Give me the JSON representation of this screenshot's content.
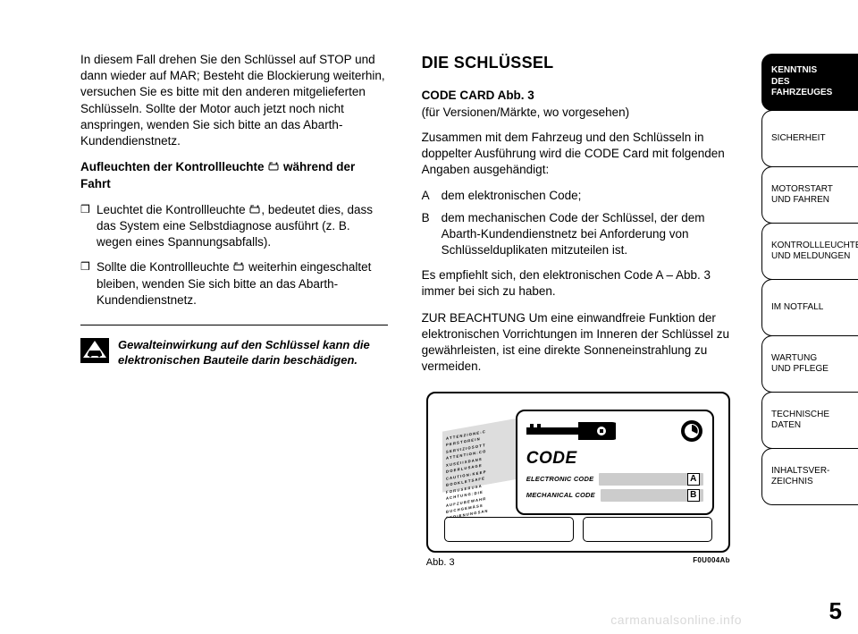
{
  "left": {
    "p1": "In diesem Fall drehen Sie den Schlüssel auf STOP und dann wieder auf MAR; Besteht die Blockierung weiterhin, versuchen Sie es bitte mit den anderen mitgelieferten Schlüsseln. Sollte der Motor auch jetzt noch nicht anspringen, wenden Sie sich bitte an das Abarth-Kundendienstnetz.",
    "h_symbol_prefix": "Aufleuchten der Kontrollleuchte ",
    "h_symbol_suffix": " während der Fahrt",
    "li1_prefix": "Leuchtet die Kontrollleuchte ",
    "li1_suffix": ", bedeutet dies, dass das System eine Selbstdiagnose ausführt (z. B. wegen eines Spannungsabfalls).",
    "li2_prefix": "Sollte die Kontrollleuchte ",
    "li2_suffix": " weiterhin eingeschaltet bleiben, wenden Sie sich bitte an das Abarth-Kundendienstnetz.",
    "warn": "Gewalteinwirkung auf den Schlüssel kann die elektronischen Bauteile darin beschädigen."
  },
  "right": {
    "title": "DIE SCHLÜSSEL",
    "h2": "CODE CARD Abb. 3",
    "sub": "(für Versionen/Märkte, wo vorgesehen)",
    "p1": "Zusammen mit dem Fahrzeug und den Schlüsseln in doppelter Ausführung wird die CODE Card mit folgenden Angaben ausgehändigt:",
    "defA_key": "A",
    "defA_val": "dem elektronischen Code;",
    "defB_key": "B",
    "defB_val": "dem mechanischen Code der Schlüssel, der dem Abarth-Kundendienstnetz bei Anforderung von Schlüsselduplikaten mitzuteilen ist.",
    "p2": "Es empfiehlt sich, den elektronischen Code A – Abb. 3 immer bei sich zu haben.",
    "p3": "ZUR BEACHTUNG Um eine einwandfreie Funktion der elektronischen Vorrichtungen im Inneren der Schlüssel zu gewährleisten, ist eine direkte Sonneneinstrahlung zu vermeiden."
  },
  "figure": {
    "bg_lines": [
      "A T T E N Z I O N E : C",
      "P E R  S T O R E  I  N",
      "S E R V I Z I O  S O T T",
      "A T T E N T I O N : C O",
      "X U S E I I  X  D A N S",
      "D  O  E  R   L   U  S  A  G  E",
      "C A U T I O N : K E E P",
      "B  O  O  K  L  E  T   S  A  F  E",
      "F O R  U S E R  U S A",
      "A C H T U N G : D I E",
      "A U F Z U B E W A H R",
      "B U C H  G E M Ä S S",
      "B E D I E N U N G S A N"
    ],
    "code_title": "CODE",
    "line1_label": "ELECTRONIC CODE",
    "line1_tag": "A",
    "line2_label": "MECHANICAL CODE",
    "line2_tag": "B",
    "caption": "Abb. 3",
    "caption_code": "F0U004Ab"
  },
  "tabs": [
    {
      "label": "KENNTNIS\nDES FAHRZEUGES",
      "active": true
    },
    {
      "label": "SICHERHEIT",
      "active": false
    },
    {
      "label": "MOTORSTART\nUND FAHREN",
      "active": false
    },
    {
      "label": "KONTROLLLEUCHTEN\nUND MELDUNGEN",
      "active": false
    },
    {
      "label": "IM NOTFALL",
      "active": false
    },
    {
      "label": "WARTUNG\nUND PFLEGE",
      "active": false
    },
    {
      "label": "TECHNISCHE DATEN",
      "active": false
    },
    {
      "label": "INHALTSVER-\nZEICHNIS",
      "active": false
    }
  ],
  "page_number": "5",
  "watermark": "carmanualsonline.info",
  "colors": {
    "text": "#000000",
    "background": "#ffffff",
    "tab_active_bg": "#000000",
    "tab_active_fg": "#ffffff",
    "fig_grey": "#cccccc",
    "watermark": "#d9d9d9"
  }
}
